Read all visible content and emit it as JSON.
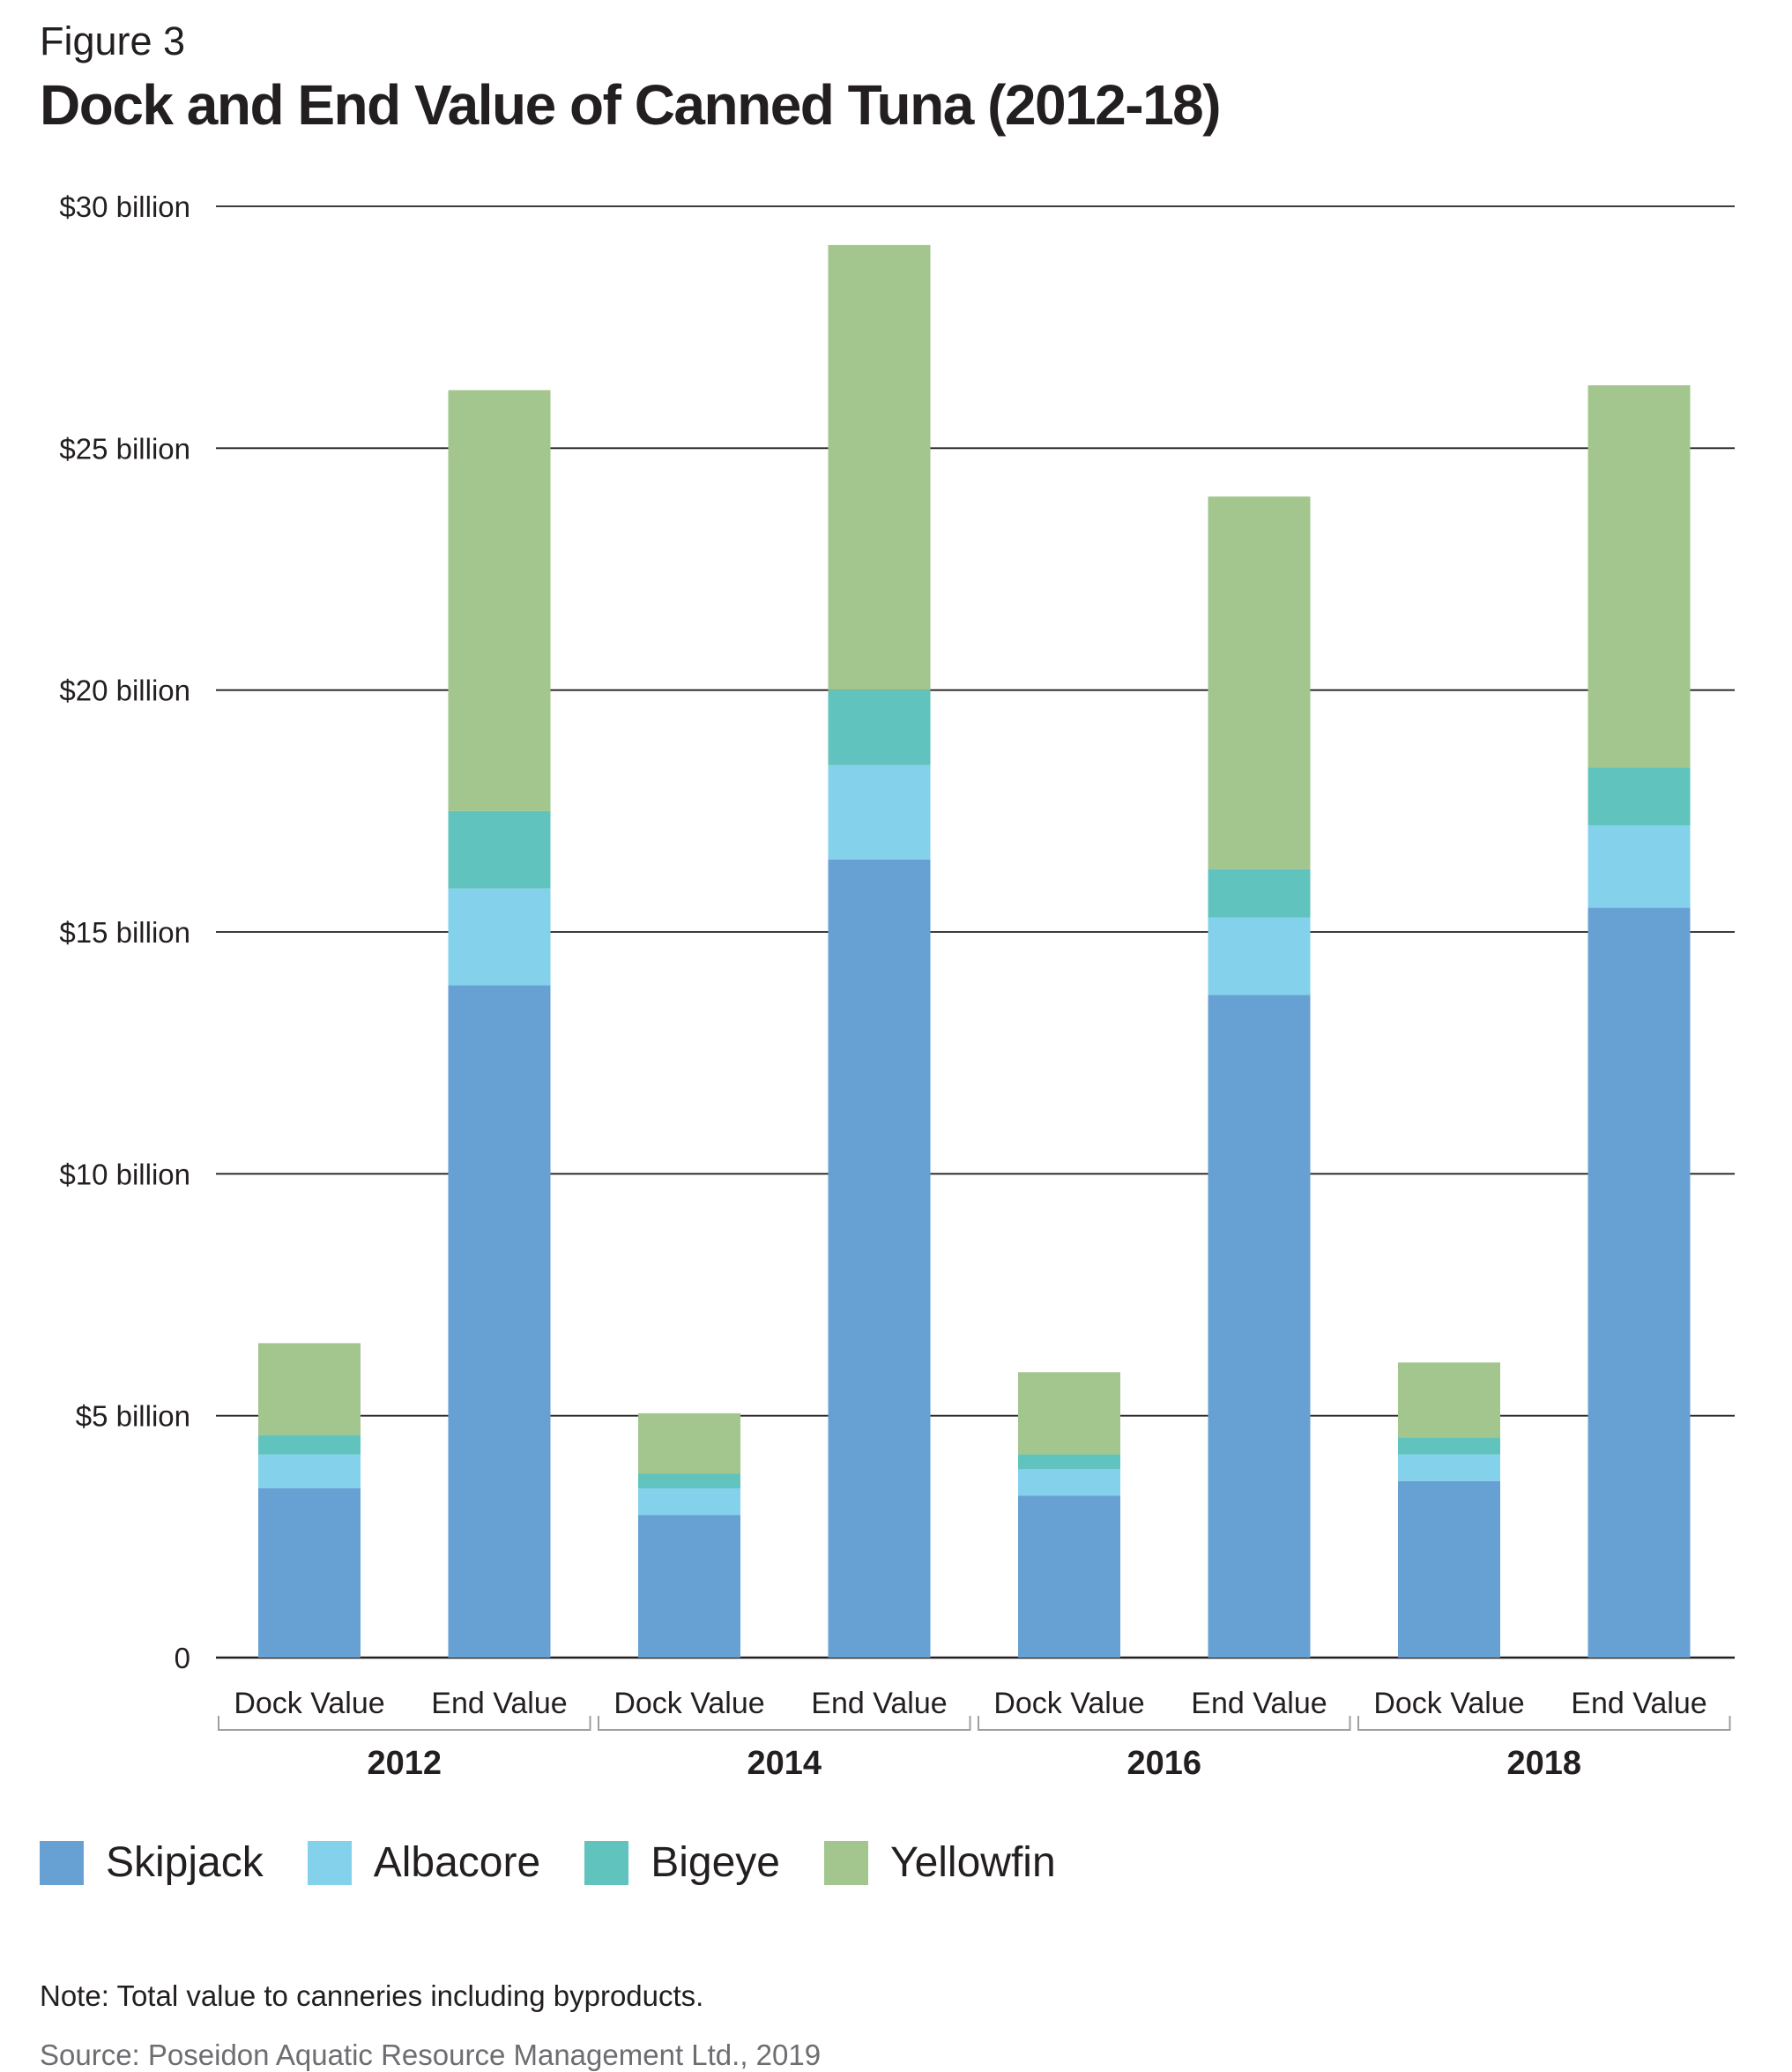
{
  "figure_label": "Figure 3",
  "title": "Dock and End Value of Canned Tuna (2012-18)",
  "note": "Note: Total value to canneries including byproducts.",
  "source": "Source: Poseidon Aquatic Resource Management Ltd., 2019",
  "colors": {
    "Skipjack": "#67a1d3",
    "Albacore": "#83d1eb",
    "Bigeye": "#61c3bd",
    "Yellowfin": "#a2c68d",
    "gridline": "#231f20",
    "text": "#231f20"
  },
  "legend": [
    {
      "label": "Skipjack",
      "color": "#67a1d3"
    },
    {
      "label": "Albacore",
      "color": "#83d1eb"
    },
    {
      "label": "Bigeye",
      "color": "#61c3bd"
    },
    {
      "label": "Yellowfin",
      "color": "#a2c68d"
    }
  ],
  "chart_data": {
    "type": "bar",
    "stacked": true,
    "title": "Dock and End Value of Canned Tuna (2012-18)",
    "ylim": [
      0,
      30
    ],
    "yticks": [
      0,
      5,
      10,
      15,
      20,
      25,
      30
    ],
    "ytick_labels": [
      "0",
      "$5 billion",
      "$10 billion",
      "$15 billion",
      "$20 billion",
      "$25 billion",
      "$30 billion"
    ],
    "grid": true,
    "legend_position": "bottom",
    "groups": [
      "2012",
      "2014",
      "2016",
      "2018"
    ],
    "categories": [
      "Dock Value",
      "End Value",
      "Dock Value",
      "End Value",
      "Dock Value",
      "End Value",
      "Dock Value",
      "End Value"
    ],
    "series": [
      {
        "name": "Skipjack",
        "values": [
          3.5,
          13.9,
          2.95,
          16.5,
          3.35,
          13.7,
          3.65,
          15.5
        ]
      },
      {
        "name": "Albacore",
        "values": [
          0.7,
          2.0,
          0.55,
          1.95,
          0.55,
          1.6,
          0.55,
          1.7
        ]
      },
      {
        "name": "Bigeye",
        "values": [
          0.4,
          1.6,
          0.3,
          1.55,
          0.3,
          1.0,
          0.35,
          1.2
        ]
      },
      {
        "name": "Yellowfin",
        "values": [
          1.9,
          8.7,
          1.25,
          9.2,
          1.7,
          7.7,
          1.55,
          7.9
        ]
      }
    ]
  }
}
